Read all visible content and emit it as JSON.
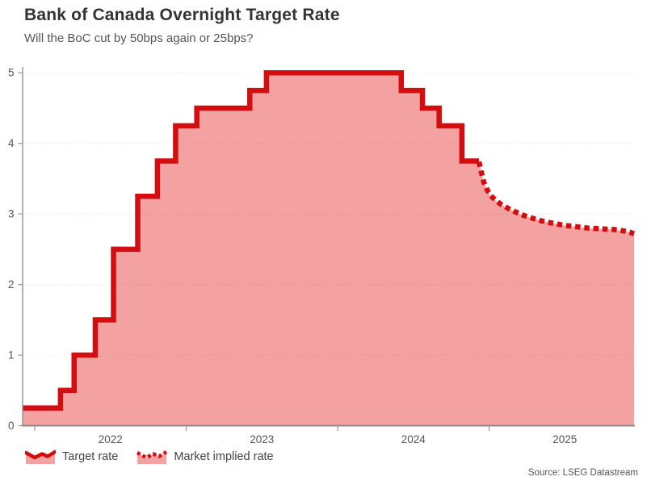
{
  "header": {
    "title": "Bank of Canada Overnight Target Rate",
    "subtitle": "Will the BoC cut by 50bps again or 25bps?"
  },
  "legend": {
    "items": [
      {
        "label": "Target rate",
        "style": "solid",
        "icon": "wavy-line-area-icon"
      },
      {
        "label": "Market implied rate",
        "style": "dotted",
        "icon": "dotted-line-area-icon"
      }
    ]
  },
  "source": "Source: LSEG Datastream",
  "colors": {
    "line_red": "#d30e11",
    "area_pink": "#f4a1a1",
    "axis_gray": "#999999",
    "axis_dark": "#888888",
    "grid_gray": "rgba(0,0,0,0.10)",
    "title_text": "#333333",
    "muted_text": "#555555",
    "tick_text": "#555555"
  },
  "chart_data": {
    "type": "area",
    "title": "Bank of Canada Overnight Target Rate",
    "subtitle": "Will the BoC cut by 50bps again or 25bps?",
    "xlabel": "",
    "ylabel": "",
    "grid": "horizontal-dotted",
    "legend_position": "bottom-left",
    "x_axis": {
      "ticks": [
        2022,
        2023,
        2024,
        2025
      ],
      "range": [
        2021.92,
        2025.957
      ],
      "tick_label_position": "mid-year"
    },
    "y_axis": {
      "ticks": [
        0,
        1,
        2,
        3,
        4,
        5
      ],
      "range": [
        0,
        5.06
      ]
    },
    "series": [
      {
        "name": "Target rate",
        "type": "step",
        "line_style": "solid",
        "points": [
          [
            2021.92,
            0.25
          ],
          [
            2022.17,
            0.5
          ],
          [
            2022.26,
            1.0
          ],
          [
            2022.4,
            1.5
          ],
          [
            2022.52,
            2.5
          ],
          [
            2022.68,
            3.25
          ],
          [
            2022.81,
            3.75
          ],
          [
            2022.93,
            4.25
          ],
          [
            2023.07,
            4.5
          ],
          [
            2023.42,
            4.75
          ],
          [
            2023.53,
            5.0
          ],
          [
            2024.42,
            4.75
          ],
          [
            2024.56,
            4.5
          ],
          [
            2024.67,
            4.25
          ],
          [
            2024.82,
            3.75
          ],
          [
            2024.933,
            3.75
          ]
        ]
      },
      {
        "name": "Market implied rate",
        "type": "line",
        "line_style": "dotted",
        "points": [
          [
            2024.933,
            3.74
          ],
          [
            2024.95,
            3.58
          ],
          [
            2024.965,
            3.45
          ],
          [
            2024.99,
            3.33
          ],
          [
            2025.01,
            3.26
          ],
          [
            2025.045,
            3.19
          ],
          [
            2025.083,
            3.13
          ],
          [
            2025.125,
            3.08
          ],
          [
            2025.173,
            3.03
          ],
          [
            2025.227,
            2.98
          ],
          [
            2025.285,
            2.94
          ],
          [
            2025.349,
            2.9
          ],
          [
            2025.419,
            2.87
          ],
          [
            2025.493,
            2.84
          ],
          [
            2025.573,
            2.82
          ],
          [
            2025.653,
            2.8
          ],
          [
            2025.739,
            2.79
          ],
          [
            2025.824,
            2.78
          ],
          [
            2025.888,
            2.76
          ],
          [
            2025.931,
            2.74
          ],
          [
            2025.957,
            2.72
          ]
        ]
      }
    ]
  }
}
